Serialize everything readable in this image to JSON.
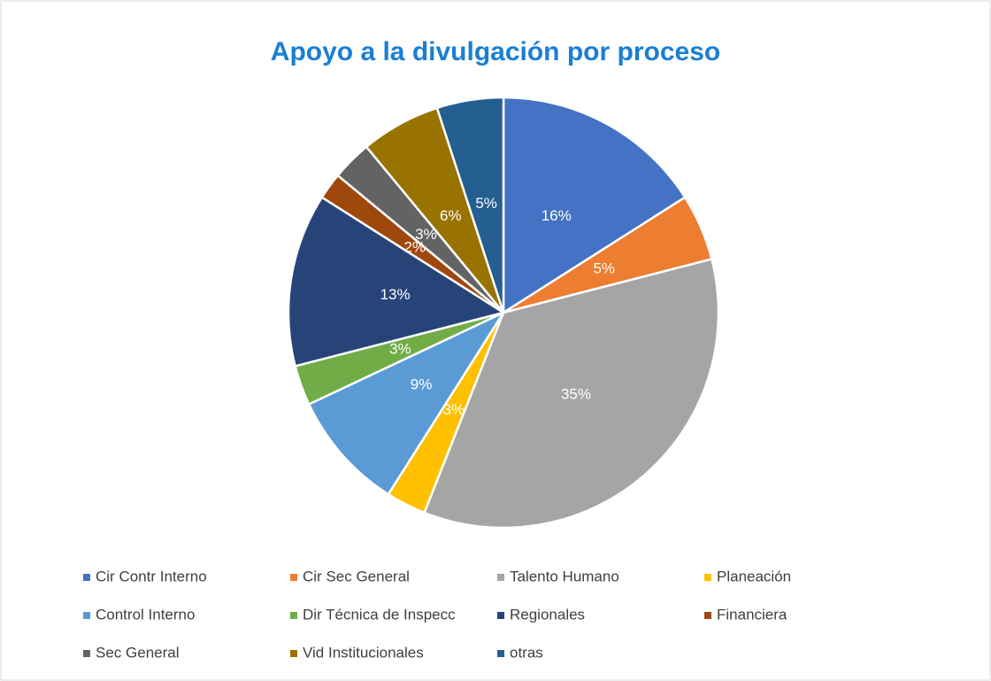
{
  "chart_data": {
    "type": "pie",
    "title": "Apoyo a la divulgación por proceso",
    "categories": [
      "Cir Contr Interno",
      "Cir Sec General",
      "Talento Humano",
      "Planeación",
      "Control Interno",
      "Dir Técnica de Inspecc",
      "Regionales",
      "Financiera",
      "Sec General",
      "Vid Institucionales",
      "otras"
    ],
    "values": [
      16,
      5,
      35,
      3,
      9,
      3,
      13,
      2,
      3,
      6,
      5
    ],
    "value_labels": [
      "16%",
      "5%",
      "35%",
      "3%",
      "9%",
      "3%",
      "13%",
      "2%",
      "3%",
      "6%",
      "5%"
    ],
    "colors": [
      "#4472c4",
      "#ed7d31",
      "#a5a5a5",
      "#ffc000",
      "#5b9bd5",
      "#70ad47",
      "#264478",
      "#9e480e",
      "#636363",
      "#997300",
      "#255e91"
    ],
    "legend": "bottom"
  }
}
